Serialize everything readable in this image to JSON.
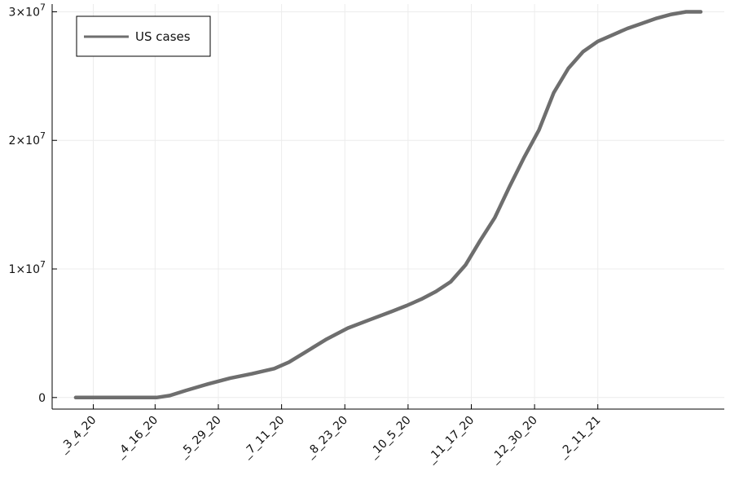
{
  "chart_data": {
    "type": "line",
    "x_tick_labels": [
      "_3_4_20",
      "_4_16_20",
      "_5_29_20",
      "_7_11_20",
      "_8_23_20",
      "_10_5_20",
      "_11_17_20",
      "_12_30_20",
      "_2_11_21"
    ],
    "x_tick_index": [
      12,
      54,
      97,
      140,
      183,
      226,
      269,
      312,
      355
    ],
    "xlim": [
      -16,
      441
    ],
    "y_ticks": [
      0,
      10000000,
      20000000,
      30000000
    ],
    "y_tick_labels": [
      {
        "base": "0",
        "exp": ""
      },
      {
        "base": "1×10",
        "exp": "7"
      },
      {
        "base": "2×10",
        "exp": "7"
      },
      {
        "base": "3×10",
        "exp": "7"
      }
    ],
    "ylim": [
      -900000,
      30600000
    ],
    "grid": true,
    "legend_position": "top-left",
    "series": [
      {
        "name": "US cases",
        "color": "#6e6e6e",
        "x": [
          0,
          20,
          40,
          55,
          64,
          75,
          90,
          105,
          120,
          135,
          145,
          155,
          170,
          185,
          200,
          215,
          225,
          235,
          245,
          255,
          265,
          275,
          285,
          295,
          305,
          315,
          325,
          335,
          345,
          355,
          365,
          375,
          385,
          395,
          405,
          415,
          425
        ],
        "y": [
          0,
          0,
          0,
          2000,
          150000,
          550000,
          1050000,
          1500000,
          1850000,
          2250000,
          2750000,
          3450000,
          4500000,
          5400000,
          6050000,
          6700000,
          7150000,
          7650000,
          8250000,
          9000000,
          10300000,
          12200000,
          14000000,
          16400000,
          18700000,
          20800000,
          23700000,
          25600000,
          26900000,
          27700000,
          28200000,
          28700000,
          29100000,
          29500000,
          29800000,
          30000000,
          30000000
        ]
      }
    ]
  }
}
